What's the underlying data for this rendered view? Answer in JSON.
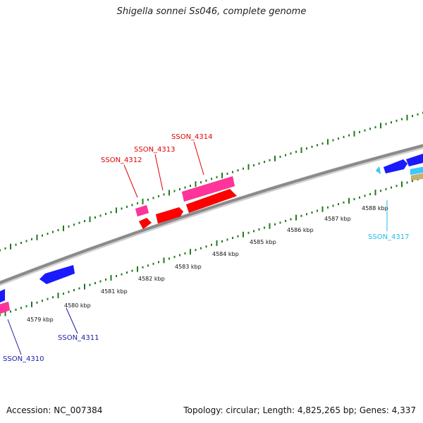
{
  "title": "Shigella sonnei Ss046, complete genome",
  "footer": {
    "accession": "Accession: NC_007384",
    "summary": "Topology: circular; Length: 4,825,265 bp; Genes: 4,337"
  },
  "colors": {
    "backbone": "#8a8a8a",
    "tick": "#1f7a1f",
    "gene_blue": "#1a1aff",
    "gene_red": "#ff0000",
    "gene_pink": "#ff3399",
    "gene_cyan": "#33ccff",
    "gene_tan": "#c8b070"
  },
  "scale": {
    "unit": "kbp",
    "ticks": [
      {
        "kbp": 4579,
        "label": "4579 kbp"
      },
      {
        "kbp": 4580,
        "label": "4580 kbp"
      },
      {
        "kbp": 4581,
        "label": "4581 kbp"
      },
      {
        "kbp": 4582,
        "label": "4582 kbp"
      },
      {
        "kbp": 4583,
        "label": "4583 kbp"
      },
      {
        "kbp": 4584,
        "label": "4584 kbp"
      },
      {
        "kbp": 4585,
        "label": "4585 kbp"
      },
      {
        "kbp": 4586,
        "label": "4586 kbp"
      },
      {
        "kbp": 4587,
        "label": "4587 kbp"
      },
      {
        "kbp": 4588,
        "label": "4588 kbp"
      }
    ]
  },
  "gene_labels": [
    {
      "name": "SSON_4310",
      "color": "#1a1aa8"
    },
    {
      "name": "SSON_4311",
      "color": "#1a1aa8"
    },
    {
      "name": "SSON_4312",
      "color": "#e00000"
    },
    {
      "name": "SSON_4313",
      "color": "#e00000"
    },
    {
      "name": "SSON_4314",
      "color": "#e00000"
    },
    {
      "name": "SSON_4317",
      "color": "#22bbee"
    }
  ]
}
